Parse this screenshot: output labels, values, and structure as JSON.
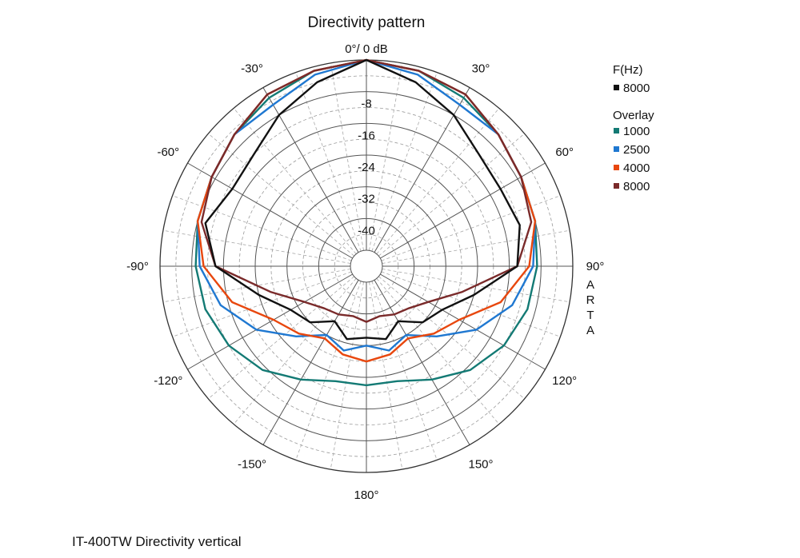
{
  "chart_data": {
    "type": "polar-line",
    "title": "Directivity pattern",
    "reference_label": "0°/ 0 dB",
    "r_ticks": [
      -8,
      -16,
      -24,
      -32,
      -40
    ],
    "r_range_db": [
      -48,
      0
    ],
    "angle_labels": [
      {
        "deg": -30,
        "text": "-30°"
      },
      {
        "deg": 30,
        "text": "30°"
      },
      {
        "deg": -60,
        "text": "-60°"
      },
      {
        "deg": 60,
        "text": "60°"
      },
      {
        "deg": -90,
        "text": "-90°"
      },
      {
        "deg": 90,
        "text": "90°"
      },
      {
        "deg": -120,
        "text": "-120°"
      },
      {
        "deg": 120,
        "text": "120°"
      },
      {
        "deg": -150,
        "text": "-150°"
      },
      {
        "deg": 150,
        "text": "150°"
      },
      {
        "deg": 180,
        "text": "180°"
      }
    ],
    "side_text": [
      "A",
      "R",
      "T",
      "A"
    ],
    "grid": true,
    "legend": {
      "header": "F(Hz)",
      "primary": {
        "name": "8000",
        "color": "#111111"
      },
      "overlay_header": "Overlay",
      "overlays": [
        {
          "name": "1000",
          "color": "#137a74"
        },
        {
          "name": "2500",
          "color": "#1f78d1"
        },
        {
          "name": "4000",
          "color": "#e8470e"
        },
        {
          "name": "8000",
          "color": "#7a2a2a"
        }
      ]
    },
    "series": [
      {
        "name": "1000",
        "color": "#137a74",
        "angles": [
          0,
          15,
          30,
          45,
          60,
          75,
          90,
          105,
          120,
          135,
          150,
          165,
          180,
          195,
          210,
          225,
          240,
          255,
          270,
          285,
          300,
          315,
          330,
          345
        ],
        "db": [
          0,
          -1,
          -3,
          -5,
          -7,
          -8,
          -9,
          -10,
          -12,
          -15,
          -19,
          -22,
          -22,
          -22,
          -19,
          -15,
          -12,
          -10,
          -9,
          -8,
          -7,
          -5,
          -3,
          -1
        ]
      },
      {
        "name": "2500",
        "color": "#1f78d1",
        "angles": [
          0,
          15,
          30,
          45,
          60,
          75,
          90,
          105,
          120,
          135,
          150,
          165,
          180,
          195,
          210,
          225,
          240,
          255,
          270,
          285,
          300,
          315,
          330,
          345
        ],
        "db": [
          0,
          -2,
          -5,
          -5,
          -7,
          -8,
          -10,
          -14,
          -20,
          -27,
          -32,
          -30,
          -32,
          -30,
          -32,
          -27,
          -20,
          -14,
          -10,
          -8,
          -7,
          -5,
          -5,
          -2
        ]
      },
      {
        "name": "4000",
        "color": "#e8470e",
        "angles": [
          0,
          15,
          30,
          45,
          60,
          75,
          90,
          105,
          120,
          135,
          150,
          165,
          180,
          195,
          210,
          225,
          240,
          255,
          270,
          285,
          300,
          315,
          330,
          345
        ],
        "db": [
          0,
          -1,
          -2,
          -5,
          -7,
          -8,
          -11,
          -17,
          -25,
          -28,
          -31,
          -29,
          -28,
          -29,
          -31,
          -28,
          -25,
          -17,
          -11,
          -8,
          -7,
          -5,
          -2,
          -1
        ]
      },
      {
        "name": "8000",
        "color": "#7a2a2a",
        "angles": [
          0,
          15,
          30,
          45,
          60,
          75,
          90,
          105,
          120,
          135,
          150,
          165,
          180,
          195,
          210,
          225,
          240,
          255,
          270,
          285,
          300,
          315,
          330,
          345
        ],
        "db": [
          0,
          -1,
          -2,
          -5,
          -7,
          -9,
          -14,
          -27,
          -34,
          -37,
          -38,
          -39,
          -38,
          -39,
          -38,
          -37,
          -34,
          -27,
          -14,
          -9,
          -7,
          -5,
          -2,
          -1
        ]
      },
      {
        "name": "8000",
        "color": "#111111",
        "angles": [
          0,
          15,
          30,
          45,
          60,
          75,
          90,
          105,
          120,
          135,
          150,
          165,
          180,
          195,
          210,
          225,
          240,
          255,
          270,
          285,
          300,
          315,
          330,
          345
        ],
        "db": [
          0,
          -4,
          -8,
          -12,
          -13,
          -12,
          -14,
          -24,
          -30,
          -32,
          -36,
          -33,
          -34,
          -33,
          -36,
          -32,
          -30,
          -24,
          -14,
          -10,
          -13,
          -12,
          -8,
          -4
        ]
      }
    ]
  },
  "caption": "IT-400TW Directivity vertical"
}
